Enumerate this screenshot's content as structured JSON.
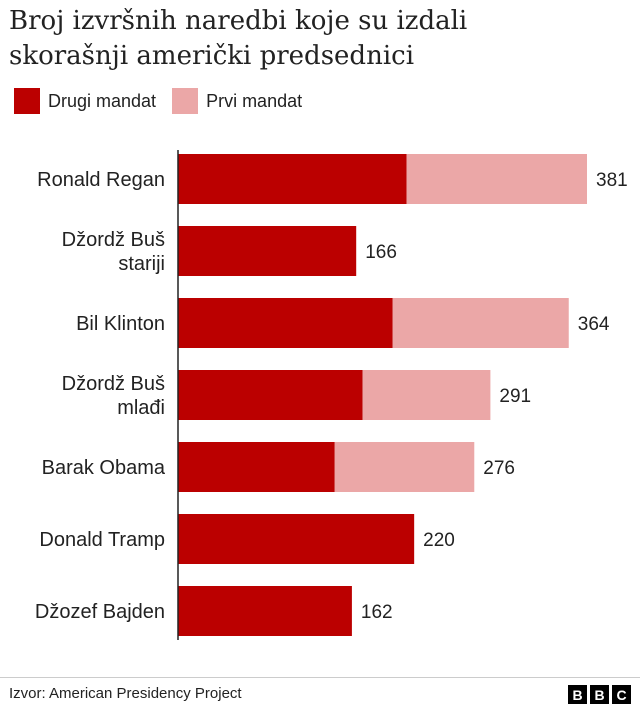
{
  "chart_data": {
    "type": "bar",
    "orientation": "horizontal",
    "stacked": true,
    "title_lines": [
      "Broj izvršnih naredbi koje su izdali",
      "skorašnji američki predsednici"
    ],
    "legend": [
      "Drugi mandat",
      "Prvi mandat"
    ],
    "categories": [
      [
        "Ronald Regan"
      ],
      [
        "Džordž Buš",
        "stariji"
      ],
      [
        "Bil Klinton"
      ],
      [
        "Džordž Buš",
        "mlađi"
      ],
      [
        "Barak Obama"
      ],
      [
        "Donald Tramp"
      ],
      [
        "Džozef Bajden"
      ]
    ],
    "series": [
      {
        "name": "Drugi mandat",
        "color": "#bb0000",
        "values": [
          213,
          166,
          200,
          172,
          146,
          220,
          162
        ]
      },
      {
        "name": "Prvi mandat",
        "color": "#eba7a7",
        "values": [
          168,
          0,
          164,
          119,
          130,
          0,
          0
        ]
      }
    ],
    "totals": [
      "381",
      "166",
      "364",
      "291",
      "276",
      "220",
      "162"
    ],
    "xlim": [
      0,
      400
    ]
  },
  "footer": {
    "source": "Izvor: American Presidency Project",
    "logo_letters": [
      "B",
      "B",
      "C"
    ]
  }
}
